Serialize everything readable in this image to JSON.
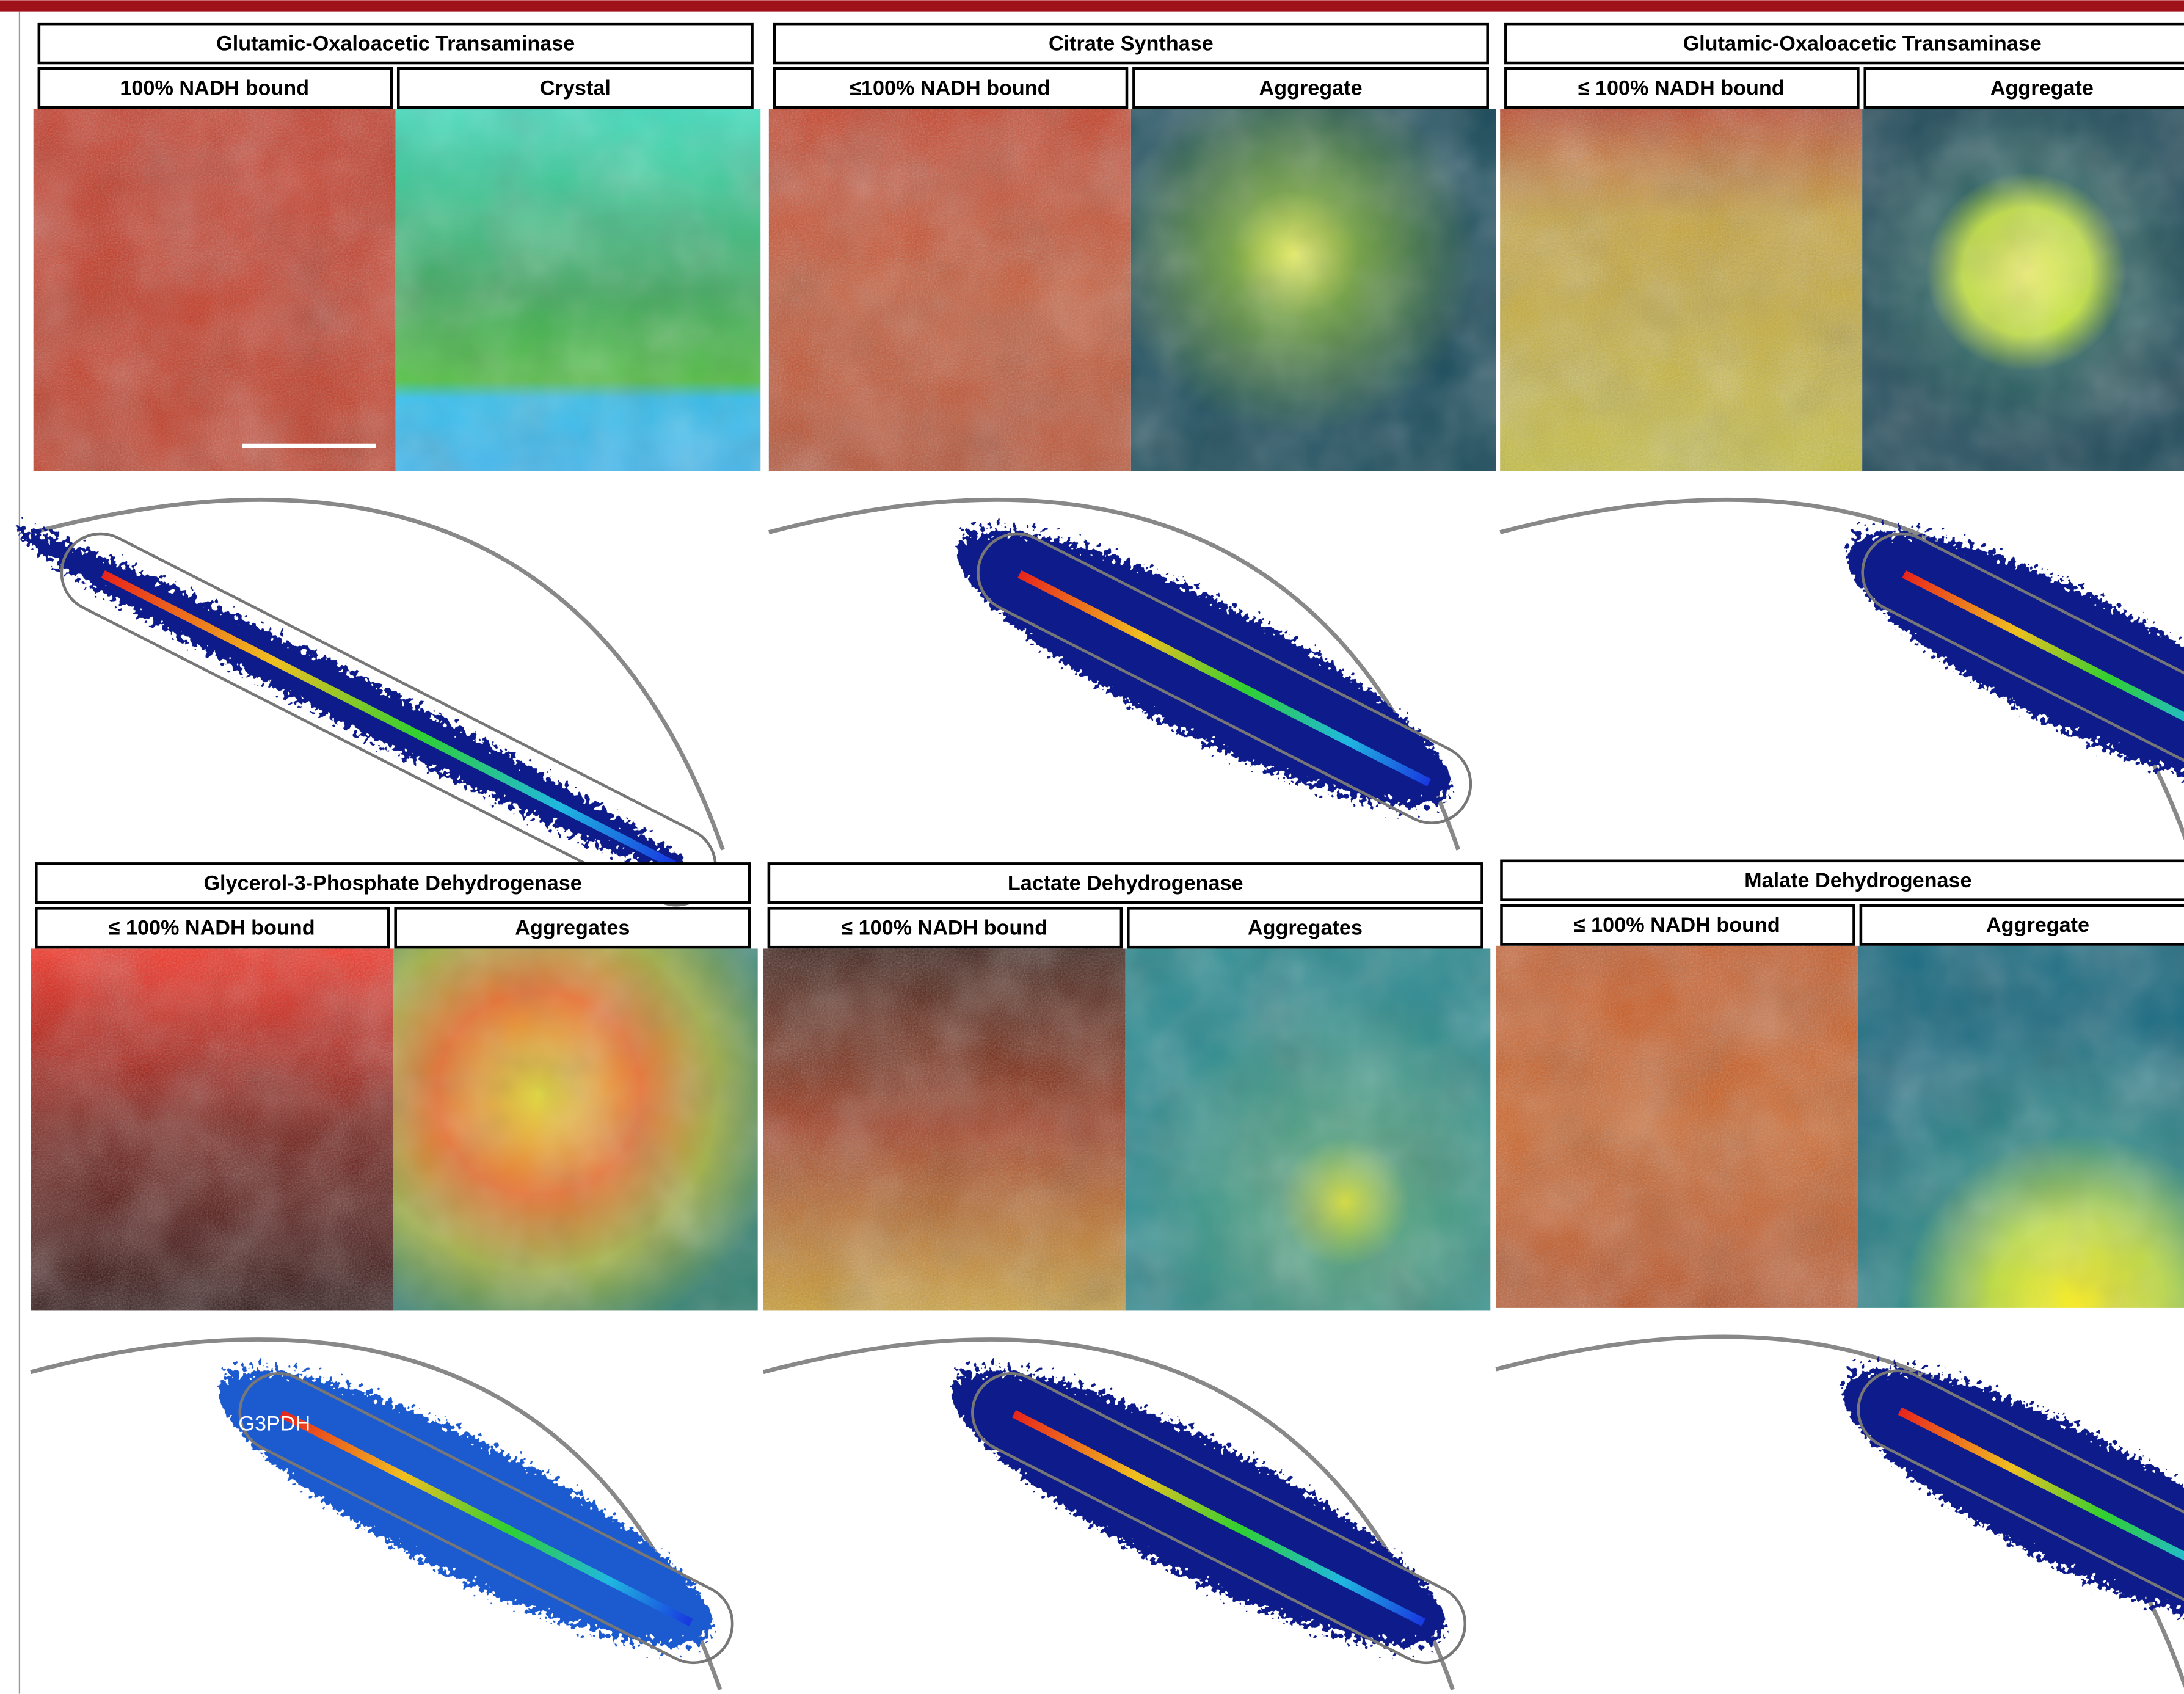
{
  "panels": [
    {
      "title": "Glutamic-Oxaloacetic Transaminase",
      "left_label": "100% NADH bound",
      "right_label": "Crystal"
    },
    {
      "title": "Citrate Synthase",
      "left_label": "≤100% NADH bound",
      "right_label": "Aggregate"
    },
    {
      "title": "Glutamic-Oxaloacetic Transaminase",
      "left_label": "≤ 100% NADH bound",
      "right_label": "Aggregate"
    },
    {
      "title": "Glycerol-3-Phosphate Dehydrogenase",
      "left_label": "≤ 100% NADH bound",
      "right_label": "Aggregates",
      "plot_label": "G3PDH"
    },
    {
      "title": "Lactate Dehydrogenase",
      "left_label": "≤ 100% NADH bound",
      "right_label": "Aggregates"
    },
    {
      "title": "Malate Dehydrogenase",
      "left_label": "≤ 100% NADH bound",
      "right_label": "Aggregate"
    }
  ]
}
